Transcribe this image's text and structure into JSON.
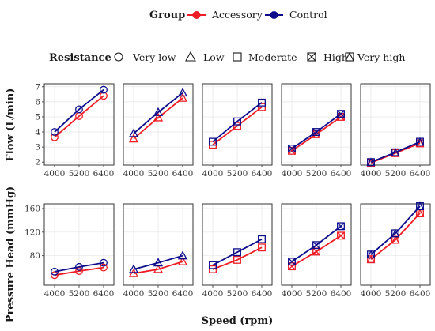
{
  "chart_data": {
    "type": "line",
    "legend": {
      "group_title": "Group",
      "groups": [
        {
          "name": "Accessory",
          "color": "#ee1c25"
        },
        {
          "name": "Control",
          "color": "#0d0d8c"
        }
      ],
      "resistance_title": "Resistance",
      "resistance": [
        {
          "name": "Very low",
          "shape": "circle"
        },
        {
          "name": "Low",
          "shape": "triangle"
        },
        {
          "name": "Moderate",
          "shape": "square"
        },
        {
          "name": "High",
          "shape": "square-x"
        },
        {
          "name": "Very high",
          "shape": "square-triangle"
        }
      ]
    },
    "xlabel": "Speed (rpm)",
    "x": [
      4000,
      5200,
      6400
    ],
    "x_ticks": [
      "4000",
      "5200",
      "6400"
    ],
    "rows": [
      {
        "ylabel": "Flow (L/min)",
        "ylim": [
          1.8,
          7.2
        ],
        "y_ticks": [
          2,
          3,
          4,
          5,
          6,
          7
        ],
        "panels": [
          {
            "resistance": "Very low",
            "Accessory": [
              3.65,
              5.05,
              6.4
            ],
            "Control": [
              4.0,
              5.5,
              6.8
            ]
          },
          {
            "resistance": "Low",
            "Accessory": [
              3.55,
              4.95,
              6.25
            ],
            "Control": [
              3.9,
              5.3,
              6.6
            ]
          },
          {
            "resistance": "Moderate",
            "Accessory": [
              3.15,
              4.4,
              5.65
            ],
            "Control": [
              3.35,
              4.7,
              5.95
            ]
          },
          {
            "resistance": "High",
            "Accessory": [
              2.75,
              3.85,
              5.0
            ],
            "Control": [
              2.9,
              4.0,
              5.2
            ]
          },
          {
            "resistance": "Very high",
            "Accessory": [
              1.95,
              2.6,
              3.25
            ],
            "Control": [
              2.0,
              2.65,
              3.35
            ]
          }
        ]
      },
      {
        "ylabel": "Pressure Head (mmHg)",
        "ylim": [
          30,
          168
        ],
        "y_ticks": [
          80,
          120,
          160
        ],
        "panels": [
          {
            "resistance": "Very low",
            "Accessory": [
              47,
              54,
              60
            ],
            "Control": [
              53,
              61,
              68
            ]
          },
          {
            "resistance": "Low",
            "Accessory": [
              50,
              57,
              70
            ],
            "Control": [
              57,
              68,
              80
            ]
          },
          {
            "resistance": "Moderate",
            "Accessory": [
              57,
              73,
              94
            ],
            "Control": [
              64,
              86,
              108
            ]
          },
          {
            "resistance": "High",
            "Accessory": [
              62,
              87,
              114
            ],
            "Control": [
              70,
              98,
              130
            ]
          },
          {
            "resistance": "Very high",
            "Accessory": [
              74,
              107,
              152
            ],
            "Control": [
              82,
              118,
              164
            ]
          }
        ]
      }
    ]
  }
}
